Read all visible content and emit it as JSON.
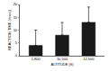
{
  "chart_data": {
    "type": "bar",
    "x_label": "ALTITUDE (ft)",
    "y_label": "REACTION TIME (msec)",
    "categories": [
      "1,800",
      "10,500",
      "12,500"
    ],
    "values": [
      4,
      8,
      13
    ],
    "errors": [
      6,
      5,
      6
    ],
    "color": "#1a1a1a",
    "ylim": [
      0,
      20
    ],
    "yticks": [
      0,
      5,
      10,
      15,
      20
    ],
    "grid": false
  }
}
